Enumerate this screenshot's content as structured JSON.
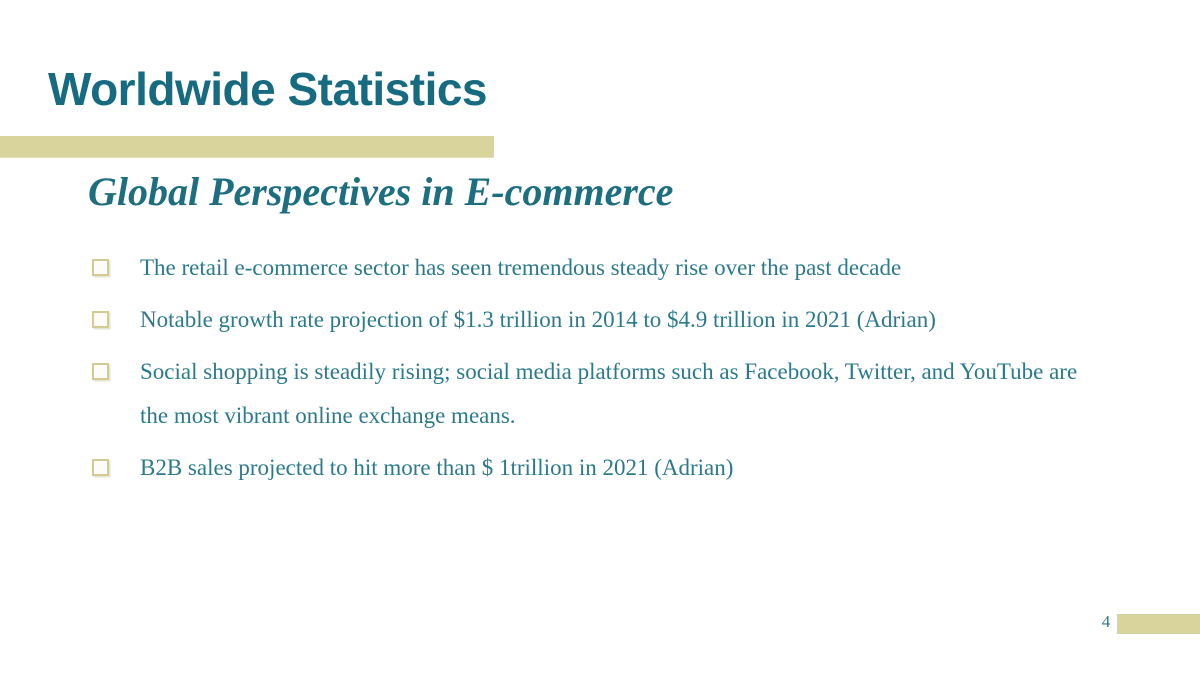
{
  "slide": {
    "title": "Worldwide Statistics",
    "subtitle": "Global Perspectives in E-commerce",
    "bullets": [
      "The retail e-commerce sector has seen tremendous steady rise over the past decade",
      "Notable growth rate projection of $1.3 trillion in 2014 to $4.9 trillion in 2021 (Adrian)",
      "Social shopping is steadily rising; social media platforms such as Facebook, Twitter, and YouTube are the most vibrant online exchange means.",
      "B2B sales projected to hit more than $ 1trillion in 2021 (Adrian)"
    ],
    "page_number": "4",
    "colors": {
      "title_color": "#176B80",
      "subtitle_color": "#1D6F80",
      "body_color": "#2B7A8C",
      "accent_bar_color": "#D9D49C",
      "bullet_border_color": "#D2CC92",
      "background_color": "#FFFFFF"
    }
  }
}
